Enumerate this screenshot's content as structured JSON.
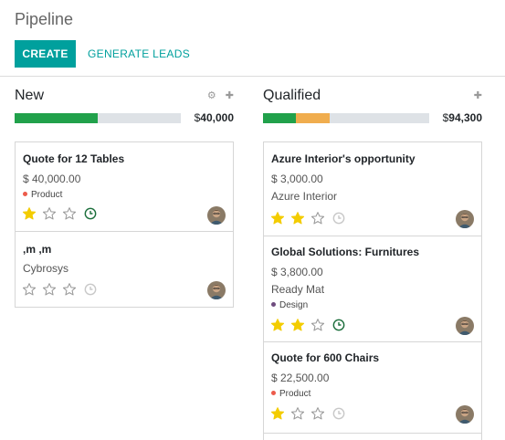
{
  "page": {
    "title": "Pipeline"
  },
  "toolbar": {
    "create_label": "CREATE",
    "generate_label": "GENERATE LEADS"
  },
  "colors": {
    "accent": "#00a09d",
    "progress_green": "#21a14b",
    "progress_orange": "#f0ad4e",
    "star": "#f3cc00",
    "tag_red": "#ec5b4b",
    "tag_purple": "#6e4c7e",
    "activity_green": "#1b6e3b"
  },
  "columns": [
    {
      "title": "New",
      "currency": "$",
      "total": "40,000",
      "progress": {
        "green": 0.5,
        "orange": 0.0
      },
      "icons": [
        "gear-icon",
        "plus-icon"
      ],
      "cards": [
        {
          "name": "Quote for 12 Tables",
          "amount": "$ 40,000.00",
          "company": "",
          "tag": "Product",
          "tag_color": "#ec5b4b",
          "stars": 1,
          "activity": "green"
        },
        {
          "name": ",m ,m",
          "amount": "",
          "company": "Cybrosys",
          "tag": "",
          "stars": 0,
          "activity": "gray"
        }
      ]
    },
    {
      "title": "Qualified",
      "currency": "$",
      "total": "94,300",
      "progress": {
        "green": 0.2,
        "orange": 0.2
      },
      "icons": [
        "plus-icon"
      ],
      "cards": [
        {
          "name": "Azure Interior's opportunity",
          "amount": "$ 3,000.00",
          "company": "Azure Interior",
          "tag": "",
          "stars": 2,
          "activity": "gray"
        },
        {
          "name": "Global Solutions: Furnitures",
          "amount": "$ 3,800.00",
          "company": "Ready Mat",
          "tag": "Design",
          "tag_color": "#6e4c7e",
          "stars": 2,
          "activity": "green"
        },
        {
          "name": "Quote for 600 Chairs",
          "amount": "$ 22,500.00",
          "company": "",
          "tag": "Product",
          "tag_color": "#ec5b4b",
          "stars": 1,
          "activity": "gray"
        }
      ]
    }
  ]
}
